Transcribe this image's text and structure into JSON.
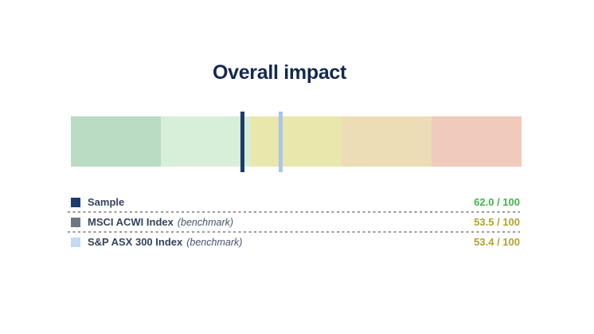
{
  "title": "Overall impact",
  "colors": {
    "title": "#14294e",
    "label": "#33435a",
    "benchmark_text": "#44546a",
    "divider": "#9a9a9a",
    "background": "#ffffff"
  },
  "legend": {
    "benchmark_suffix": "(benchmark)"
  },
  "chart_data": {
    "type": "bullet",
    "title": "Overall impact",
    "axis": {
      "min": 0,
      "max": 100,
      "left_end_value": 100,
      "right_end_value": 0,
      "orientation": "horizontal-reversed"
    },
    "bands": [
      {
        "range": "100-80",
        "color": "#b9dcc3"
      },
      {
        "range": "80-60",
        "color": "#d7efd9"
      },
      {
        "range": "60-40",
        "color": "#e9e7ab"
      },
      {
        "range": "40-20",
        "color": "#edddb6"
      },
      {
        "range": "20-0",
        "color": "#f0cbbb"
      }
    ],
    "series": [
      {
        "name": "Sample",
        "value": 62.0,
        "out_of": 100,
        "display_value": "62.0 / 100",
        "is_benchmark": false,
        "marker_color": "#1d3c69",
        "swatch_color": "#1d3c69",
        "value_color": "#3fb54b"
      },
      {
        "name": "MSCI ACWI Index",
        "value": 53.5,
        "out_of": 100,
        "display_value": "53.5 / 100",
        "is_benchmark": true,
        "marker_color": "#6e7882",
        "swatch_color": "#6e7882",
        "value_color": "#b0a22c"
      },
      {
        "name": "S&P ASX 300 Index",
        "value": 53.4,
        "out_of": 100,
        "display_value": "53.4 / 100",
        "is_benchmark": true,
        "marker_color": "#a9c5e9",
        "swatch_color": "#c3d9f4",
        "value_color": "#b0a22c"
      }
    ]
  }
}
